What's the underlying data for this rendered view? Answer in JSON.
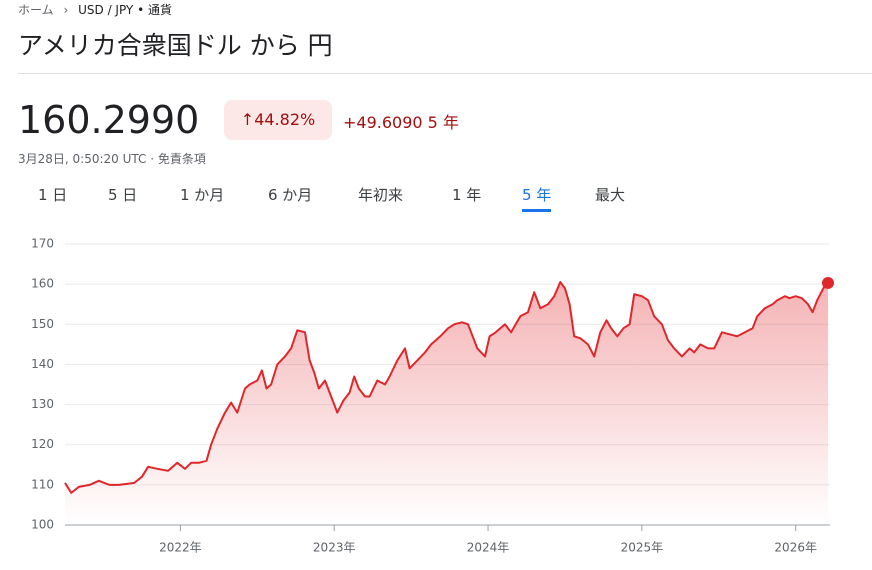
{
  "breadcrumb": {
    "home": "ホーム",
    "current": "USD / JPY • 通貨"
  },
  "header": {
    "title": "アメリカ合衆国ドル から 円",
    "price": "160.2990",
    "change_pct": "44.82%",
    "change_abs": "+49.6090",
    "period": "5 年",
    "timestamp": "3月28日, 0:50:20 UTC · 免責条項"
  },
  "tabs": {
    "items": [
      "1 日",
      "5 日",
      "1 か月",
      "6 か月",
      "年初来",
      "1 年",
      "5 年",
      "最大"
    ],
    "selected": 6
  },
  "chart_data": {
    "type": "line",
    "color": "#e0262b",
    "grid": true,
    "x": [
      2021.25,
      2021.29,
      2021.34,
      2021.41,
      2021.47,
      2021.54,
      2021.6,
      2021.7,
      2021.75,
      2021.79,
      2021.85,
      2021.92,
      2021.98,
      2022.03,
      2022.07,
      2022.12,
      2022.17,
      2022.2,
      2022.24,
      2022.29,
      2022.33,
      2022.37,
      2022.42,
      2022.45,
      2022.5,
      2022.53,
      2022.56,
      2022.59,
      2022.63,
      2022.68,
      2022.72,
      2022.76,
      2022.81,
      2022.84,
      2022.87,
      2022.9,
      2022.94,
      2022.97,
      2023.02,
      2023.06,
      2023.1,
      2023.13,
      2023.16,
      2023.2,
      2023.23,
      2023.28,
      2023.33,
      2023.36,
      2023.41,
      2023.46,
      2023.49,
      2023.54,
      2023.59,
      2023.63,
      2023.69,
      2023.74,
      2023.78,
      2023.83,
      2023.87,
      2023.89,
      2023.93,
      2023.98,
      2024.01,
      2024.05,
      2024.11,
      2024.15,
      2024.21,
      2024.26,
      2024.3,
      2024.34,
      2024.39,
      2024.43,
      2024.47,
      2024.5,
      2024.53,
      2024.56,
      2024.6,
      2024.65,
      2024.69,
      2024.73,
      2024.77,
      2024.8,
      2024.84,
      2024.88,
      2024.92,
      2024.95,
      2025.0,
      2025.04,
      2025.08,
      2025.13,
      2025.17,
      2025.21,
      2025.26,
      2025.31,
      2025.34,
      2025.38,
      2025.43,
      2025.47,
      2025.52,
      2025.57,
      2025.62,
      2025.67,
      2025.72,
      2025.75,
      2025.8,
      2025.85,
      2025.88,
      2025.93,
      2025.96,
      2026.0,
      2026.04,
      2026.08,
      2026.11,
      2026.14,
      2026.18,
      2026.21
    ],
    "values": [
      110.5,
      108,
      109.5,
      110,
      111,
      110,
      110,
      110.5,
      112,
      114.5,
      114,
      113.5,
      115.5,
      114,
      115.5,
      115.5,
      116,
      120,
      124,
      128,
      130.5,
      128,
      134,
      135,
      136,
      138.5,
      134,
      135,
      140,
      142,
      144,
      148.5,
      148,
      141,
      138,
      134,
      136,
      133,
      128,
      131,
      133,
      137,
      134,
      132,
      132,
      136,
      135,
      137,
      141,
      144,
      139,
      141,
      143,
      145,
      147,
      149,
      150,
      150.5,
      150,
      148,
      144,
      142,
      147,
      148,
      150,
      148,
      152,
      153,
      158,
      154,
      155,
      157,
      160.5,
      159,
      155,
      147,
      146.5,
      145,
      142,
      148,
      151,
      149,
      147,
      149,
      150,
      157.5,
      157,
      156,
      152,
      150,
      146,
      144,
      142,
      144,
      143,
      145,
      144,
      144,
      148,
      147.5,
      147,
      148,
      149,
      152,
      154,
      155,
      156,
      157,
      156.5,
      157,
      156.5,
      155,
      153,
      156,
      159,
      160.299
    ],
    "xlim": [
      2021.25,
      2026.21
    ],
    "xticks": [
      {
        "value": 2022,
        "label": "2022年"
      },
      {
        "value": 2023,
        "label": "2023年"
      },
      {
        "value": 2024,
        "label": "2024年"
      },
      {
        "value": 2025,
        "label": "2025年"
      },
      {
        "value": 2026,
        "label": "2026年"
      }
    ],
    "ylim": [
      100,
      170
    ],
    "yticks": [
      100,
      110,
      120,
      130,
      140,
      150,
      160,
      170
    ]
  }
}
